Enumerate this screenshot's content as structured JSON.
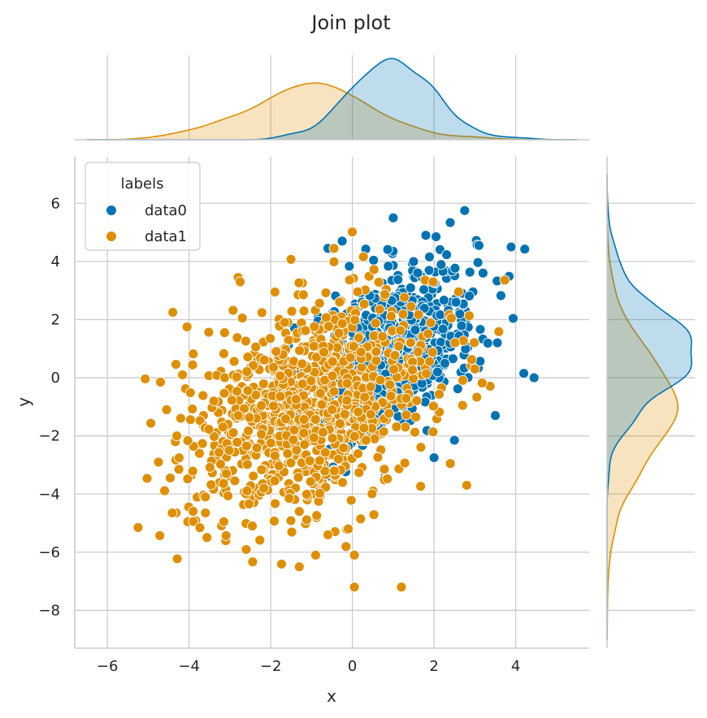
{
  "chart_data": {
    "type": "scatter",
    "title": "Join plot",
    "xlabel": "x",
    "ylabel": "y",
    "xlim": [
      -6.8,
      5.8
    ],
    "ylim": [
      -9.3,
      7.6
    ],
    "xticks": [
      -6,
      -4,
      -2,
      0,
      2,
      4
    ],
    "yticks": [
      -8,
      -6,
      -4,
      -2,
      0,
      2,
      4,
      6
    ],
    "grid": true,
    "legend": {
      "title": "labels",
      "position": "top-left"
    },
    "marginals": {
      "top": "kde",
      "right": "kde"
    },
    "series": [
      {
        "name": "data0",
        "color": "#0173b2",
        "distribution": {
          "x_mean": 1.0,
          "x_sd": 1.0,
          "y_mean": 1.0,
          "y_sd": 1.5,
          "corr": 0.5,
          "n": 750
        },
        "extreme_points": [
          [
            4.2,
            0.15
          ],
          [
            4.45,
            0.0
          ],
          [
            2.75,
            5.75
          ],
          [
            1.0,
            5.5
          ],
          [
            1.8,
            4.9
          ],
          [
            2.05,
            4.85
          ],
          [
            3.1,
            4.55
          ],
          [
            3.55,
            1.2
          ],
          [
            3.5,
            -1.3
          ],
          [
            2.5,
            -2.15
          ],
          [
            2.0,
            -2.75
          ],
          [
            -0.1,
            -2.35
          ],
          [
            -0.25,
            4.7
          ],
          [
            -0.6,
            4.45
          ]
        ]
      },
      {
        "name": "data1",
        "color": "#de8f05",
        "distribution": {
          "x_mean": -1.0,
          "x_sd": 1.5,
          "y_mean": -1.0,
          "y_sd": 1.8,
          "corr": 0.35,
          "n": 1000
        },
        "extreme_points": [
          [
            -5.25,
            -5.15
          ],
          [
            -4.75,
            -2.9
          ],
          [
            -4.4,
            2.25
          ],
          [
            -4.05,
            1.75
          ],
          [
            -2.8,
            3.45
          ],
          [
            -2.75,
            3.3
          ],
          [
            -0.45,
            4.45
          ],
          [
            0.05,
            -7.2
          ],
          [
            1.2,
            -7.2
          ],
          [
            -1.3,
            -6.5
          ],
          [
            -0.9,
            -6.1
          ],
          [
            0.05,
            -6.1
          ],
          [
            -0.1,
            -5.2
          ],
          [
            -0.6,
            -5.4
          ],
          [
            2.8,
            -3.7
          ],
          [
            2.4,
            -2.95
          ],
          [
            3.0,
            0.3
          ],
          [
            2.7,
            -0.95
          ],
          [
            -3.6,
            -4.65
          ],
          [
            -3.6,
            -4.1
          ],
          [
            -3.15,
            -4.95
          ],
          [
            -2.45,
            -5.1
          ],
          [
            -1.55,
            -4.15
          ],
          [
            -4.25,
            -3.15
          ],
          [
            -4.3,
            -2.0
          ],
          [
            -4.55,
            -1.1
          ],
          [
            -4.7,
            -0.15
          ]
        ]
      }
    ]
  }
}
